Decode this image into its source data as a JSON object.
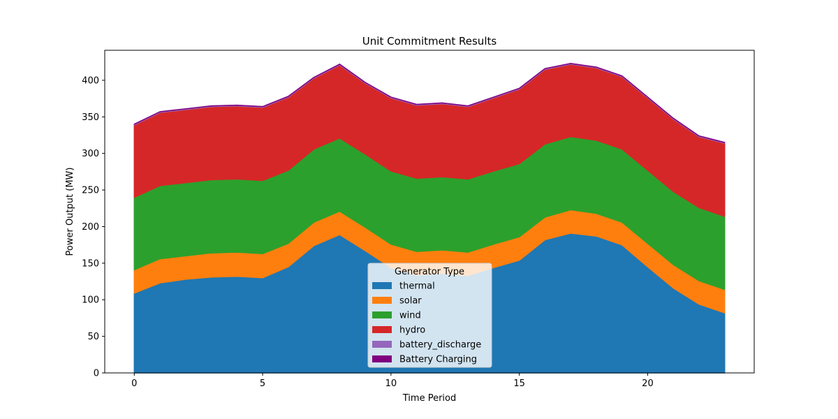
{
  "chart_data": {
    "type": "area",
    "stacked": true,
    "title": "Unit Commitment Results",
    "xlabel": "Time Period",
    "ylabel": "Power Output (MW)",
    "xlim": [
      -1.15,
      24.15
    ],
    "ylim": [
      0,
      441
    ],
    "xticks": [
      0,
      5,
      10,
      15,
      20
    ],
    "yticks": [
      0,
      50,
      100,
      150,
      200,
      250,
      300,
      350,
      400
    ],
    "grid": false,
    "legend": {
      "title": "Generator Type",
      "placement": "lower-center"
    },
    "x": [
      0,
      1,
      2,
      3,
      4,
      5,
      6,
      7,
      8,
      9,
      10,
      11,
      12,
      13,
      14,
      15,
      16,
      17,
      18,
      19,
      20,
      21,
      22,
      23
    ],
    "series": [
      {
        "name": "thermal",
        "color": "#1f77b4",
        "values": [
          109,
          123,
          128,
          131,
          132,
          130,
          145,
          174,
          189,
          167,
          144,
          134,
          136,
          133,
          144,
          154,
          182,
          191,
          187,
          175,
          145,
          116,
          94,
          82
        ]
      },
      {
        "name": "solar",
        "color": "#ff7f0e",
        "values": [
          32,
          33,
          32,
          33,
          33,
          33,
          32,
          32,
          32,
          32,
          32,
          32,
          32,
          32,
          32,
          32,
          31,
          32,
          31,
          31,
          32,
          32,
          32,
          32
        ]
      },
      {
        "name": "wind",
        "color": "#2ca02c",
        "values": [
          99,
          100,
          100,
          100,
          100,
          100,
          100,
          100,
          100,
          100,
          100,
          100,
          100,
          100,
          100,
          100,
          100,
          100,
          100,
          100,
          100,
          100,
          100,
          100
        ]
      },
      {
        "name": "hydro",
        "color": "#d62728",
        "values": [
          99,
          100,
          100,
          100,
          100,
          100,
          100,
          97,
          100,
          97,
          100,
          100,
          100,
          99,
          100,
          102,
          102,
          99,
          99,
          99,
          99,
          99,
          97,
          100
        ]
      },
      {
        "name": "battery_discharge",
        "color": "#9467bd",
        "values": [
          1,
          1,
          1,
          1,
          1,
          1,
          1,
          1,
          1,
          1,
          1,
          1,
          1,
          1,
          1,
          1,
          1,
          1,
          1,
          1,
          1,
          1,
          1,
          1
        ]
      },
      {
        "name": "Battery Charging",
        "color": "#800080",
        "values": [
          0,
          0,
          0,
          0,
          0,
          0,
          0,
          0,
          0,
          0,
          0,
          0,
          0,
          0,
          0,
          0,
          0,
          0,
          0,
          0,
          0,
          0,
          0,
          0
        ]
      }
    ]
  }
}
